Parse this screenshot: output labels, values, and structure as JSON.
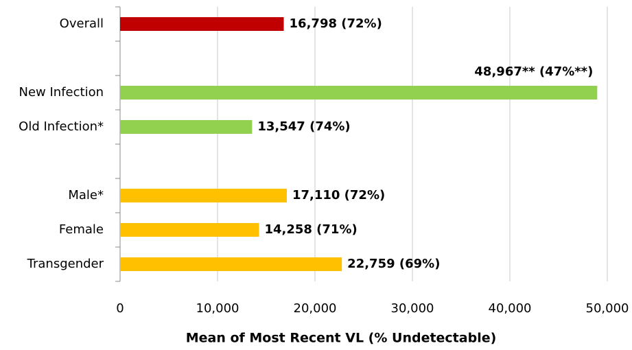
{
  "chart_data": {
    "type": "barh",
    "x_label": "Mean of Most Recent VL (% Undetectable)",
    "categories": [
      "Overall",
      null,
      "New Infection",
      "Old Infection*",
      null,
      "Male*",
      "Female",
      "Transgender"
    ],
    "values": [
      16798,
      null,
      48967,
      13547,
      null,
      17110,
      14258,
      22759
    ],
    "value_labels": [
      "16,798  (72%)",
      null,
      "48,967**  (47%**)",
      "13,547  (74%)",
      null,
      "17,110  (72%)",
      "14,258  (71%)",
      "22,759  (69%)"
    ],
    "colors": [
      "#c00000",
      null,
      "#92d050",
      "#92d050",
      null,
      "#ffc000",
      "#ffc000",
      "#ffc000"
    ],
    "xlim": [
      0,
      50000
    ],
    "xticks": [
      0,
      {
        "value": 10000,
        "label": "10,000"
      },
      {
        "value": 20000,
        "label": "20,000"
      },
      {
        "value": 30000,
        "label": "30,000"
      },
      {
        "value": 40000,
        "label": "40,000"
      },
      {
        "value": 50000,
        "label": "50,000"
      }
    ],
    "grid": true
  }
}
